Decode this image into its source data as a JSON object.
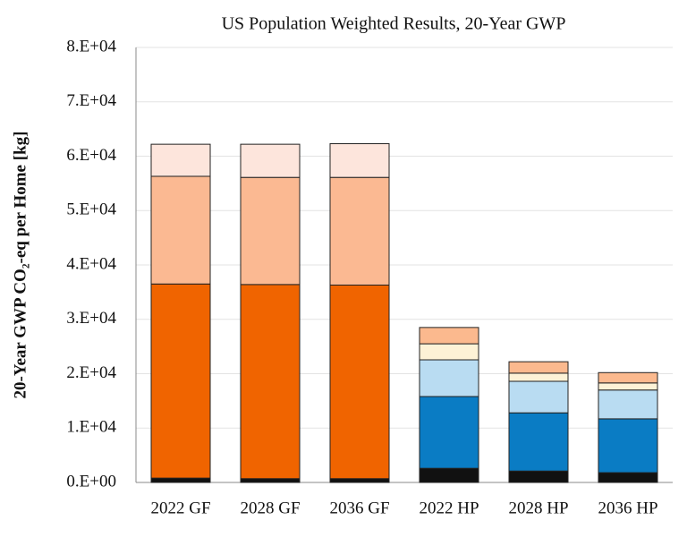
{
  "chart_data": {
    "type": "stacked_bar",
    "title": "US Population Weighted Results, 20-Year GWP",
    "y_label": "20-Year GWP CO₂-eq per Home [kg]",
    "categories": [
      "2022 GF",
      "2028 GF",
      "2036 GF",
      "2022 HP",
      "2028 HP",
      "2036 HP"
    ],
    "series": [
      {
        "color": "#111111",
        "values": [
          800,
          700,
          700,
          2600,
          2100,
          1800
        ]
      },
      {
        "color": "#f06400",
        "values": [
          35700,
          35700,
          35600,
          null,
          null,
          null
        ]
      },
      {
        "color": "#fbb992",
        "values": [
          19800,
          19700,
          19800,
          null,
          null,
          null
        ]
      },
      {
        "color": "#fde5dc",
        "values": [
          5900,
          6100,
          6200,
          null,
          null,
          null
        ]
      },
      {
        "color": "#0a7cc4",
        "values": [
          null,
          null,
          null,
          13200,
          10700,
          9900
        ]
      },
      {
        "color": "#b9dcf2",
        "values": [
          null,
          null,
          null,
          6750,
          5800,
          5300
        ]
      },
      {
        "color": "#fdf2d6",
        "values": [
          null,
          null,
          null,
          2950,
          1500,
          1300
        ]
      },
      {
        "color": "#fbb98e",
        "values": [
          null,
          null,
          null,
          3000,
          2100,
          1900
        ]
      }
    ],
    "ylim": [
      0,
      80000
    ],
    "yticks": [
      {
        "value": 0,
        "label": "0.E+00"
      },
      {
        "value": 10000,
        "label": "1.E+04"
      },
      {
        "value": 20000,
        "label": "2.E+04"
      },
      {
        "value": 30000,
        "label": "3.E+04"
      },
      {
        "value": 40000,
        "label": "4.E+04"
      },
      {
        "value": 50000,
        "label": "5.E+04"
      },
      {
        "value": 60000,
        "label": "6.E+04"
      },
      {
        "value": 70000,
        "label": "7.E+04"
      },
      {
        "value": 80000,
        "label": "8.E+04"
      }
    ],
    "grid": true
  }
}
